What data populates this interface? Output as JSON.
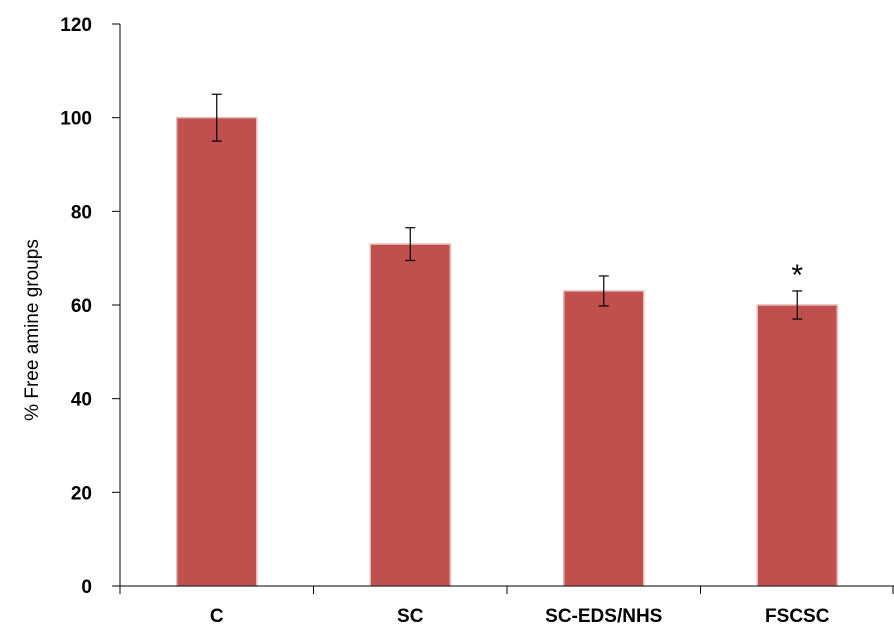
{
  "chart_data": {
    "type": "bar",
    "title": "",
    "xlabel": "",
    "ylabel": "% Free amine groups",
    "ylim": [
      0,
      120
    ],
    "yticks": [
      0,
      20,
      40,
      60,
      80,
      100,
      120
    ],
    "grid": false,
    "categories": [
      "C",
      "SC",
      "SC-EDS/NHS",
      "FSCSC"
    ],
    "values": [
      100,
      73,
      63,
      60
    ],
    "errors": [
      5,
      3.5,
      3.2,
      3
    ],
    "annotations": [
      {
        "category": "FSCSC",
        "text": "*"
      }
    ],
    "colors": {
      "bar": "#c0504d",
      "bar_edge": "#e6b9b8",
      "axis": "#000000"
    }
  }
}
